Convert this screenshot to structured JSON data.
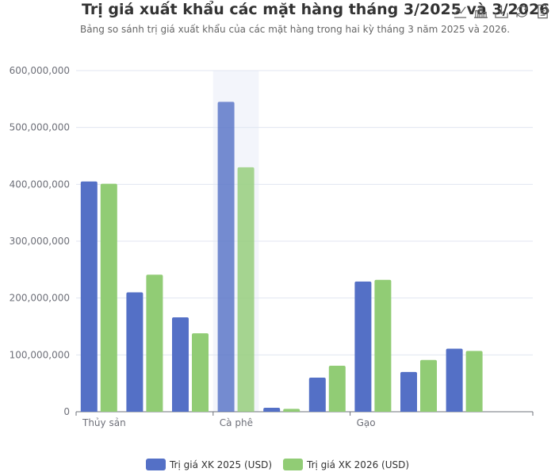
{
  "title": "Trị giá xuất khẩu các mặt hàng tháng 3/2025 và 3/2026",
  "subtitle": "Bảng so sánh trị giá xuất khẩu của các mặt hàng trong hai kỳ tháng 3 năm 2025 và 2026.",
  "toolbox": [
    "line-chart-icon",
    "bar-chart-icon",
    "download-icon",
    "refresh-icon",
    "data-view-icon"
  ],
  "chart_data": {
    "type": "bar",
    "title": "Trị giá xuất khẩu các mặt hàng tháng 3/2025 và 3/2026",
    "subtitle": "Bảng so sánh trị giá xuất khẩu của các mặt hàng trong hai kỳ tháng 3 năm 2025 và 2026.",
    "xlabel": "",
    "ylabel": "",
    "ylim": [
      0,
      600000000
    ],
    "yticks": [
      "0",
      "100,000,000",
      "200,000,000",
      "300,000,000",
      "400,000,000",
      "500,000,000",
      "600,000,000"
    ],
    "categories": [
      "Thủy sản",
      "",
      "",
      "Cà phê",
      "",
      "",
      "Gạo",
      "",
      "",
      ""
    ],
    "highlighted_category_index": 3,
    "grid": true,
    "legend_position": "bottom",
    "series": [
      {
        "name": "Trị giá XK 2025 (USD)",
        "color": "#5470c6",
        "values": [
          405000000,
          210000000,
          166000000,
          545000000,
          7000000,
          60000000,
          229000000,
          70000000,
          111000000,
          0
        ]
      },
      {
        "name": "Trị giá XK 2026 (USD)",
        "color": "#91cc75",
        "values": [
          401000000,
          241000000,
          138000000,
          430000000,
          5000000,
          81000000,
          232000000,
          91000000,
          107000000,
          0
        ]
      }
    ]
  }
}
